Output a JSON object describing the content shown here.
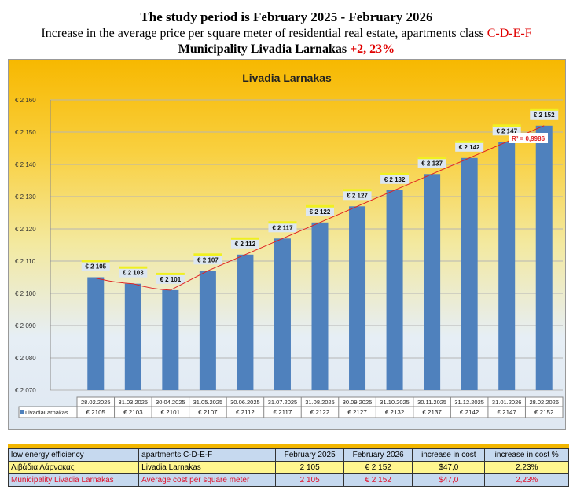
{
  "header": {
    "line1": "The study period is February 2025 - February 2026",
    "line2_prefix": "Increase in the average price per square meter of residential real estate, apartments class ",
    "line2_class": "C-D-E-F",
    "line3_prefix": "Municipality Livadia Larnakas ",
    "line3_change": "+2, 23%"
  },
  "chart_data": {
    "type": "bar",
    "title": "Livadia Larnakas",
    "categories": [
      "28.02.2025",
      "31.03.2025",
      "30.04.2025",
      "31.05.2025",
      "30.06.2025",
      "31.07.2025",
      "31.08.2025",
      "30.09.2025",
      "31.10.2025",
      "30.11.2025",
      "31.12.2025",
      "31.01.2026",
      "28.02.2026"
    ],
    "series": [
      {
        "name": "LivadiaLarnakas",
        "values": [
          2105,
          2103,
          2101,
          2107,
          2112,
          2117,
          2122,
          2127,
          2132,
          2137,
          2142,
          2147,
          2152
        ]
      }
    ],
    "data_labels": [
      "€ 2 105",
      "€ 2 103",
      "€ 2 101",
      "€ 2 107",
      "€ 2 112",
      "€ 2 117",
      "€ 2 122",
      "€ 2 127",
      "€ 2 132",
      "€ 2 137",
      "€ 2 142",
      "€ 2 147",
      "€ 2 152"
    ],
    "table_labels": [
      "€ 2105",
      "€ 2103",
      "€ 2101",
      "€ 2107",
      "€ 2112",
      "€ 2117",
      "€ 2122",
      "€ 2127",
      "€ 2132",
      "€ 2137",
      "€ 2142",
      "€ 2147",
      "€ 2152"
    ],
    "ylim": [
      2070,
      2160
    ],
    "ytick_labels": [
      "€ 2 070",
      "€ 2 080",
      "€ 2 090",
      "€ 2 100",
      "€ 2 110",
      "€ 2 120",
      "€ 2 130",
      "€ 2 140",
      "€ 2 150",
      "€ 2 160"
    ],
    "trendline": {
      "type": "polynomial",
      "r2_label": "R² = 0,9986"
    },
    "grid": true,
    "bar_color": "#4f81bd",
    "trend_color": "#e02020"
  },
  "table": {
    "rows": [
      [
        "low energy efficiency",
        "apartments C-D-E-F",
        "February 2025",
        "February 2026",
        "increase in cost",
        "increase in cost %"
      ],
      [
        "Λιβάδια Λάρνακας",
        "Livadia Larnakas",
        "2 105",
        "€ 2 152",
        "$47,0",
        "2,23%"
      ],
      [
        "Municipality Livadia Larnakas",
        "Average cost per square meter",
        "2 105",
        "€ 2 152",
        "$47,0",
        "2,23%"
      ]
    ]
  }
}
